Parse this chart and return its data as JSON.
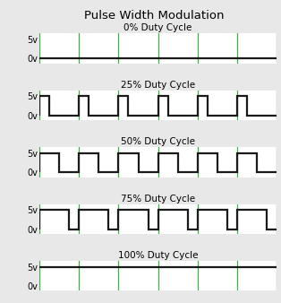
{
  "title": "Pulse Width Modulation",
  "panels": [
    {
      "label": "0% Duty Cycle",
      "duty": 0.0
    },
    {
      "label": "25% Duty Cycle",
      "duty": 0.25
    },
    {
      "label": "50% Duty Cycle",
      "duty": 0.5
    },
    {
      "label": "75% Duty Cycle",
      "duty": 0.75
    },
    {
      "label": "100% Duty Cycle",
      "duty": 1.0
    }
  ],
  "num_cycles": 6,
  "period": 1.0,
  "high_val": 5,
  "low_val": 0,
  "signal_color": "#1a1a1a",
  "grid_color": "#3cb043",
  "bg_color": "#e8e8e8",
  "panel_bg": "#ffffff",
  "ylabel_5v": "5v",
  "ylabel_0v": "0v",
  "signal_lw": 1.6,
  "grid_lw": 0.9,
  "title_fontsize": 9.5,
  "label_fontsize": 7.5,
  "ytick_fontsize": 7
}
